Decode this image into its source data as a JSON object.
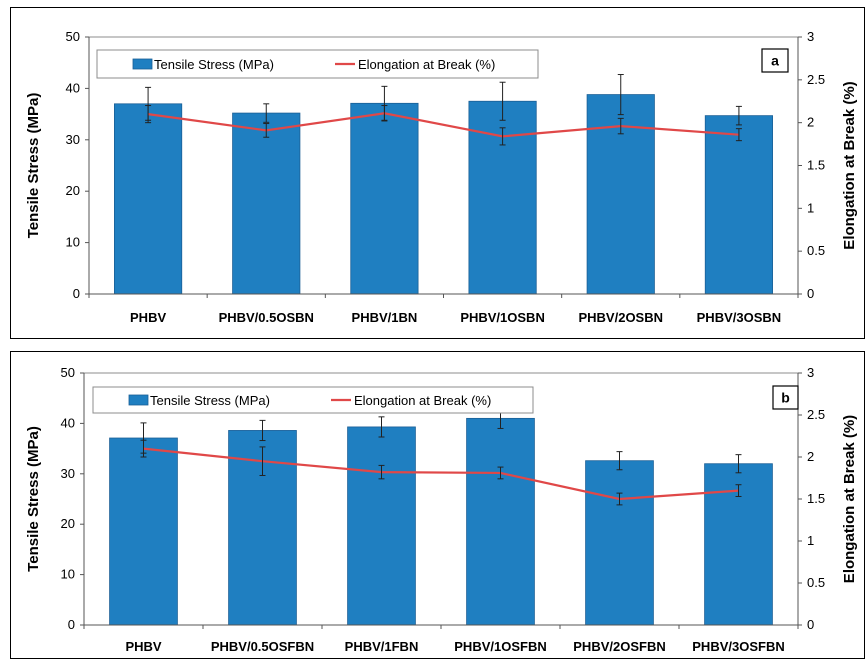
{
  "chart_data": [
    {
      "type": "bar",
      "panel_label": "a",
      "categories": [
        "PHBV",
        "PHBV/0.5OSBN",
        "PHBV/1BN",
        "PHBV/1OSBN",
        "PHBV/2OSBN",
        "PHBV/3OSBN"
      ],
      "ylabel": "Tensile Stress (MPa)",
      "y2label": "Elongation at Break (%)",
      "ylim": [
        0,
        50
      ],
      "y2lim": [
        0,
        3
      ],
      "yticks": [
        "0",
        "10",
        "20",
        "30",
        "40",
        "50"
      ],
      "y2ticks": [
        "0",
        "0.5",
        "1",
        "1.5",
        "2",
        "2.5",
        "3"
      ],
      "legend_position": "top-left",
      "grid": false,
      "series": [
        {
          "name": "Tensile Stress (MPa)",
          "kind": "bar",
          "axis": "left",
          "color": "#1f7fc1",
          "values": [
            37.0,
            35.2,
            37.1,
            37.5,
            38.8,
            34.7
          ],
          "errors": [
            3.2,
            1.8,
            3.3,
            3.7,
            3.9,
            1.8
          ]
        },
        {
          "name": "Elongation at Break (%)",
          "kind": "line",
          "axis": "right",
          "color": "#e04848",
          "values": [
            2.1,
            1.91,
            2.11,
            1.84,
            1.96,
            1.86
          ],
          "errors": [
            0.1,
            0.08,
            0.09,
            0.1,
            0.09,
            0.07
          ]
        }
      ]
    },
    {
      "type": "bar",
      "panel_label": "b",
      "categories": [
        "PHBV",
        "PHBV/0.5OSFBN",
        "PHBV/1FBN",
        "PHBV/1OSFBN",
        "PHBV/2OSFBN",
        "PHBV/3OSFBN"
      ],
      "ylabel": "Tensile Stress (MPa)",
      "y2label": "Elongation at Break (%)",
      "ylim": [
        0,
        50
      ],
      "y2lim": [
        0,
        3
      ],
      "yticks": [
        "0",
        "10",
        "20",
        "30",
        "40",
        "50"
      ],
      "y2ticks": [
        "0",
        "0.5",
        "1",
        "1.5",
        "2",
        "2.5",
        "3"
      ],
      "legend_position": "top-left",
      "grid": false,
      "series": [
        {
          "name": "Tensile Stress (MPa)",
          "kind": "bar",
          "axis": "left",
          "color": "#1f7fc1",
          "values": [
            37.1,
            38.6,
            39.3,
            41.0,
            32.6,
            32.0
          ],
          "errors": [
            3.0,
            2.0,
            2.0,
            2.0,
            1.8,
            1.8
          ]
        },
        {
          "name": "Elongation at Break (%)",
          "kind": "line",
          "axis": "right",
          "color": "#e04848",
          "values": [
            2.1,
            1.95,
            1.82,
            1.81,
            1.5,
            1.6
          ],
          "errors": [
            0.1,
            0.17,
            0.08,
            0.07,
            0.07,
            0.07
          ]
        }
      ]
    }
  ]
}
